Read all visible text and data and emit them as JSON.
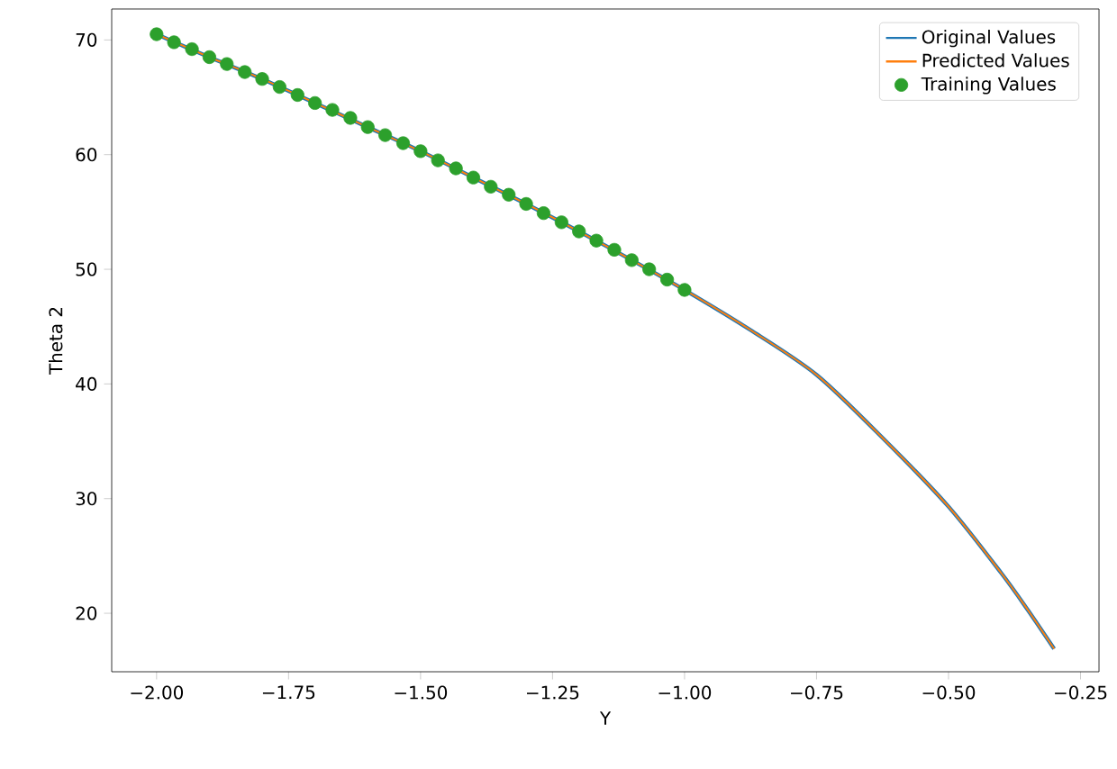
{
  "chart_data": {
    "type": "line",
    "xlabel": "Y",
    "ylabel": "Theta 2",
    "x": [
      -2.0,
      -1.9,
      -1.8,
      -1.7,
      -1.6,
      -1.5,
      -1.4,
      -1.3,
      -1.2,
      -1.1,
      -1.0,
      -0.875,
      -0.75,
      -0.625,
      -0.5,
      -0.4,
      -0.35,
      -0.3
    ],
    "series": [
      {
        "name": "Original Values",
        "color": "#1f77b4",
        "values": [
          70.5,
          68.5,
          66.6,
          64.5,
          62.4,
          60.3,
          58.0,
          55.7,
          53.3,
          50.8,
          48.2,
          44.7,
          40.8,
          35.3,
          29.3,
          23.5,
          20.3,
          16.9
        ]
      },
      {
        "name": "Predicted Values",
        "color": "#ff7f0e",
        "values": [
          70.5,
          68.5,
          66.6,
          64.5,
          62.4,
          60.3,
          58.0,
          55.7,
          53.3,
          50.8,
          48.2,
          44.7,
          40.8,
          35.3,
          29.3,
          23.5,
          20.3,
          16.9
        ]
      },
      {
        "name": "Training Values",
        "color": "#2ca02c",
        "type": "scatter",
        "marker": "circle",
        "x": [
          -2.0,
          -1.967,
          -1.933,
          -1.9,
          -1.867,
          -1.833,
          -1.8,
          -1.767,
          -1.733,
          -1.7,
          -1.667,
          -1.633,
          -1.6,
          -1.567,
          -1.533,
          -1.5,
          -1.467,
          -1.433,
          -1.4,
          -1.367,
          -1.333,
          -1.3,
          -1.267,
          -1.233,
          -1.2,
          -1.167,
          -1.133,
          -1.1,
          -1.067,
          -1.033,
          -1.0
        ],
        "values": [
          70.5,
          69.8,
          69.2,
          68.5,
          67.9,
          67.2,
          66.6,
          65.9,
          65.2,
          64.5,
          63.9,
          63.2,
          62.4,
          61.7,
          61.0,
          60.3,
          59.5,
          58.8,
          58.0,
          57.2,
          56.5,
          55.7,
          54.9,
          54.1,
          53.3,
          52.5,
          51.7,
          50.8,
          50.0,
          49.1,
          48.2
        ]
      }
    ],
    "xlim": [
      -2.085,
      -0.215
    ],
    "ylim": [
      14.9,
      72.7
    ],
    "xticks": [
      {
        "value": -2.0,
        "label": "−2.00"
      },
      {
        "value": -1.75,
        "label": "−1.75"
      },
      {
        "value": -1.5,
        "label": "−1.50"
      },
      {
        "value": -1.25,
        "label": "−1.25"
      },
      {
        "value": -1.0,
        "label": "−1.00"
      },
      {
        "value": -0.75,
        "label": "−0.75"
      },
      {
        "value": -0.5,
        "label": "−0.50"
      },
      {
        "value": -0.25,
        "label": "−0.25"
      }
    ],
    "yticks": [
      20,
      30,
      40,
      50,
      60,
      70
    ],
    "legend": "top right",
    "grid": false
  }
}
